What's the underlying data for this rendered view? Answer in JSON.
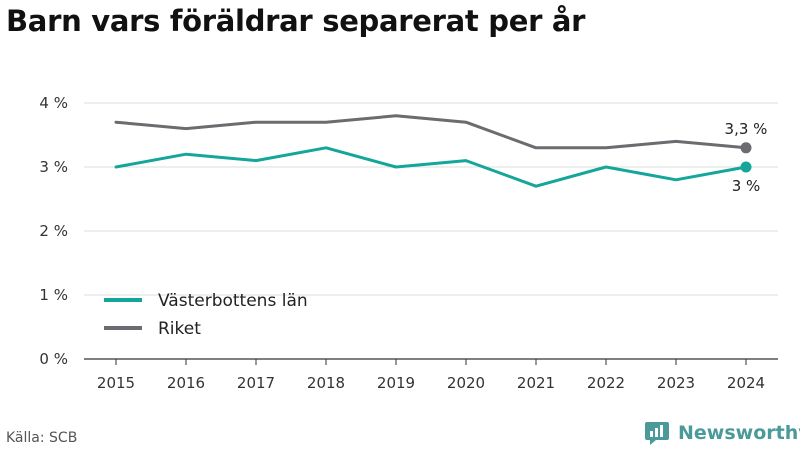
{
  "title": "Barn vars föräldrar separerat per år",
  "source": "Källa: SCB",
  "brand": {
    "name": "Newsworthy",
    "icon": "newsworthy-logo-icon"
  },
  "colors": {
    "teal": "#14a69a",
    "gray": "#6b6b70",
    "grid": "#dddddd",
    "brand": "#4a9a9a"
  },
  "chart_data": {
    "type": "line",
    "title": "Barn vars föräldrar separerat per år",
    "xlabel": "",
    "ylabel": "",
    "x": [
      "2015",
      "2016",
      "2017",
      "2018",
      "2019",
      "2020",
      "2021",
      "2022",
      "2023",
      "2024"
    ],
    "ylim": [
      0,
      4
    ],
    "yticks": [
      "0 %",
      "1 %",
      "2 %",
      "3 %",
      "4 %"
    ],
    "grid": true,
    "legend_position": "bottom-left",
    "series": [
      {
        "name": "Västerbottens län",
        "color": "#14a69a",
        "values": [
          3.0,
          3.2,
          3.1,
          3.3,
          3.0,
          3.1,
          2.7,
          3.0,
          2.8,
          3.0
        ],
        "end_label": "3 %"
      },
      {
        "name": "Riket",
        "color": "#6b6b70",
        "values": [
          3.7,
          3.6,
          3.7,
          3.7,
          3.8,
          3.7,
          3.3,
          3.3,
          3.4,
          3.3
        ],
        "end_label": "3,3 %"
      }
    ]
  }
}
